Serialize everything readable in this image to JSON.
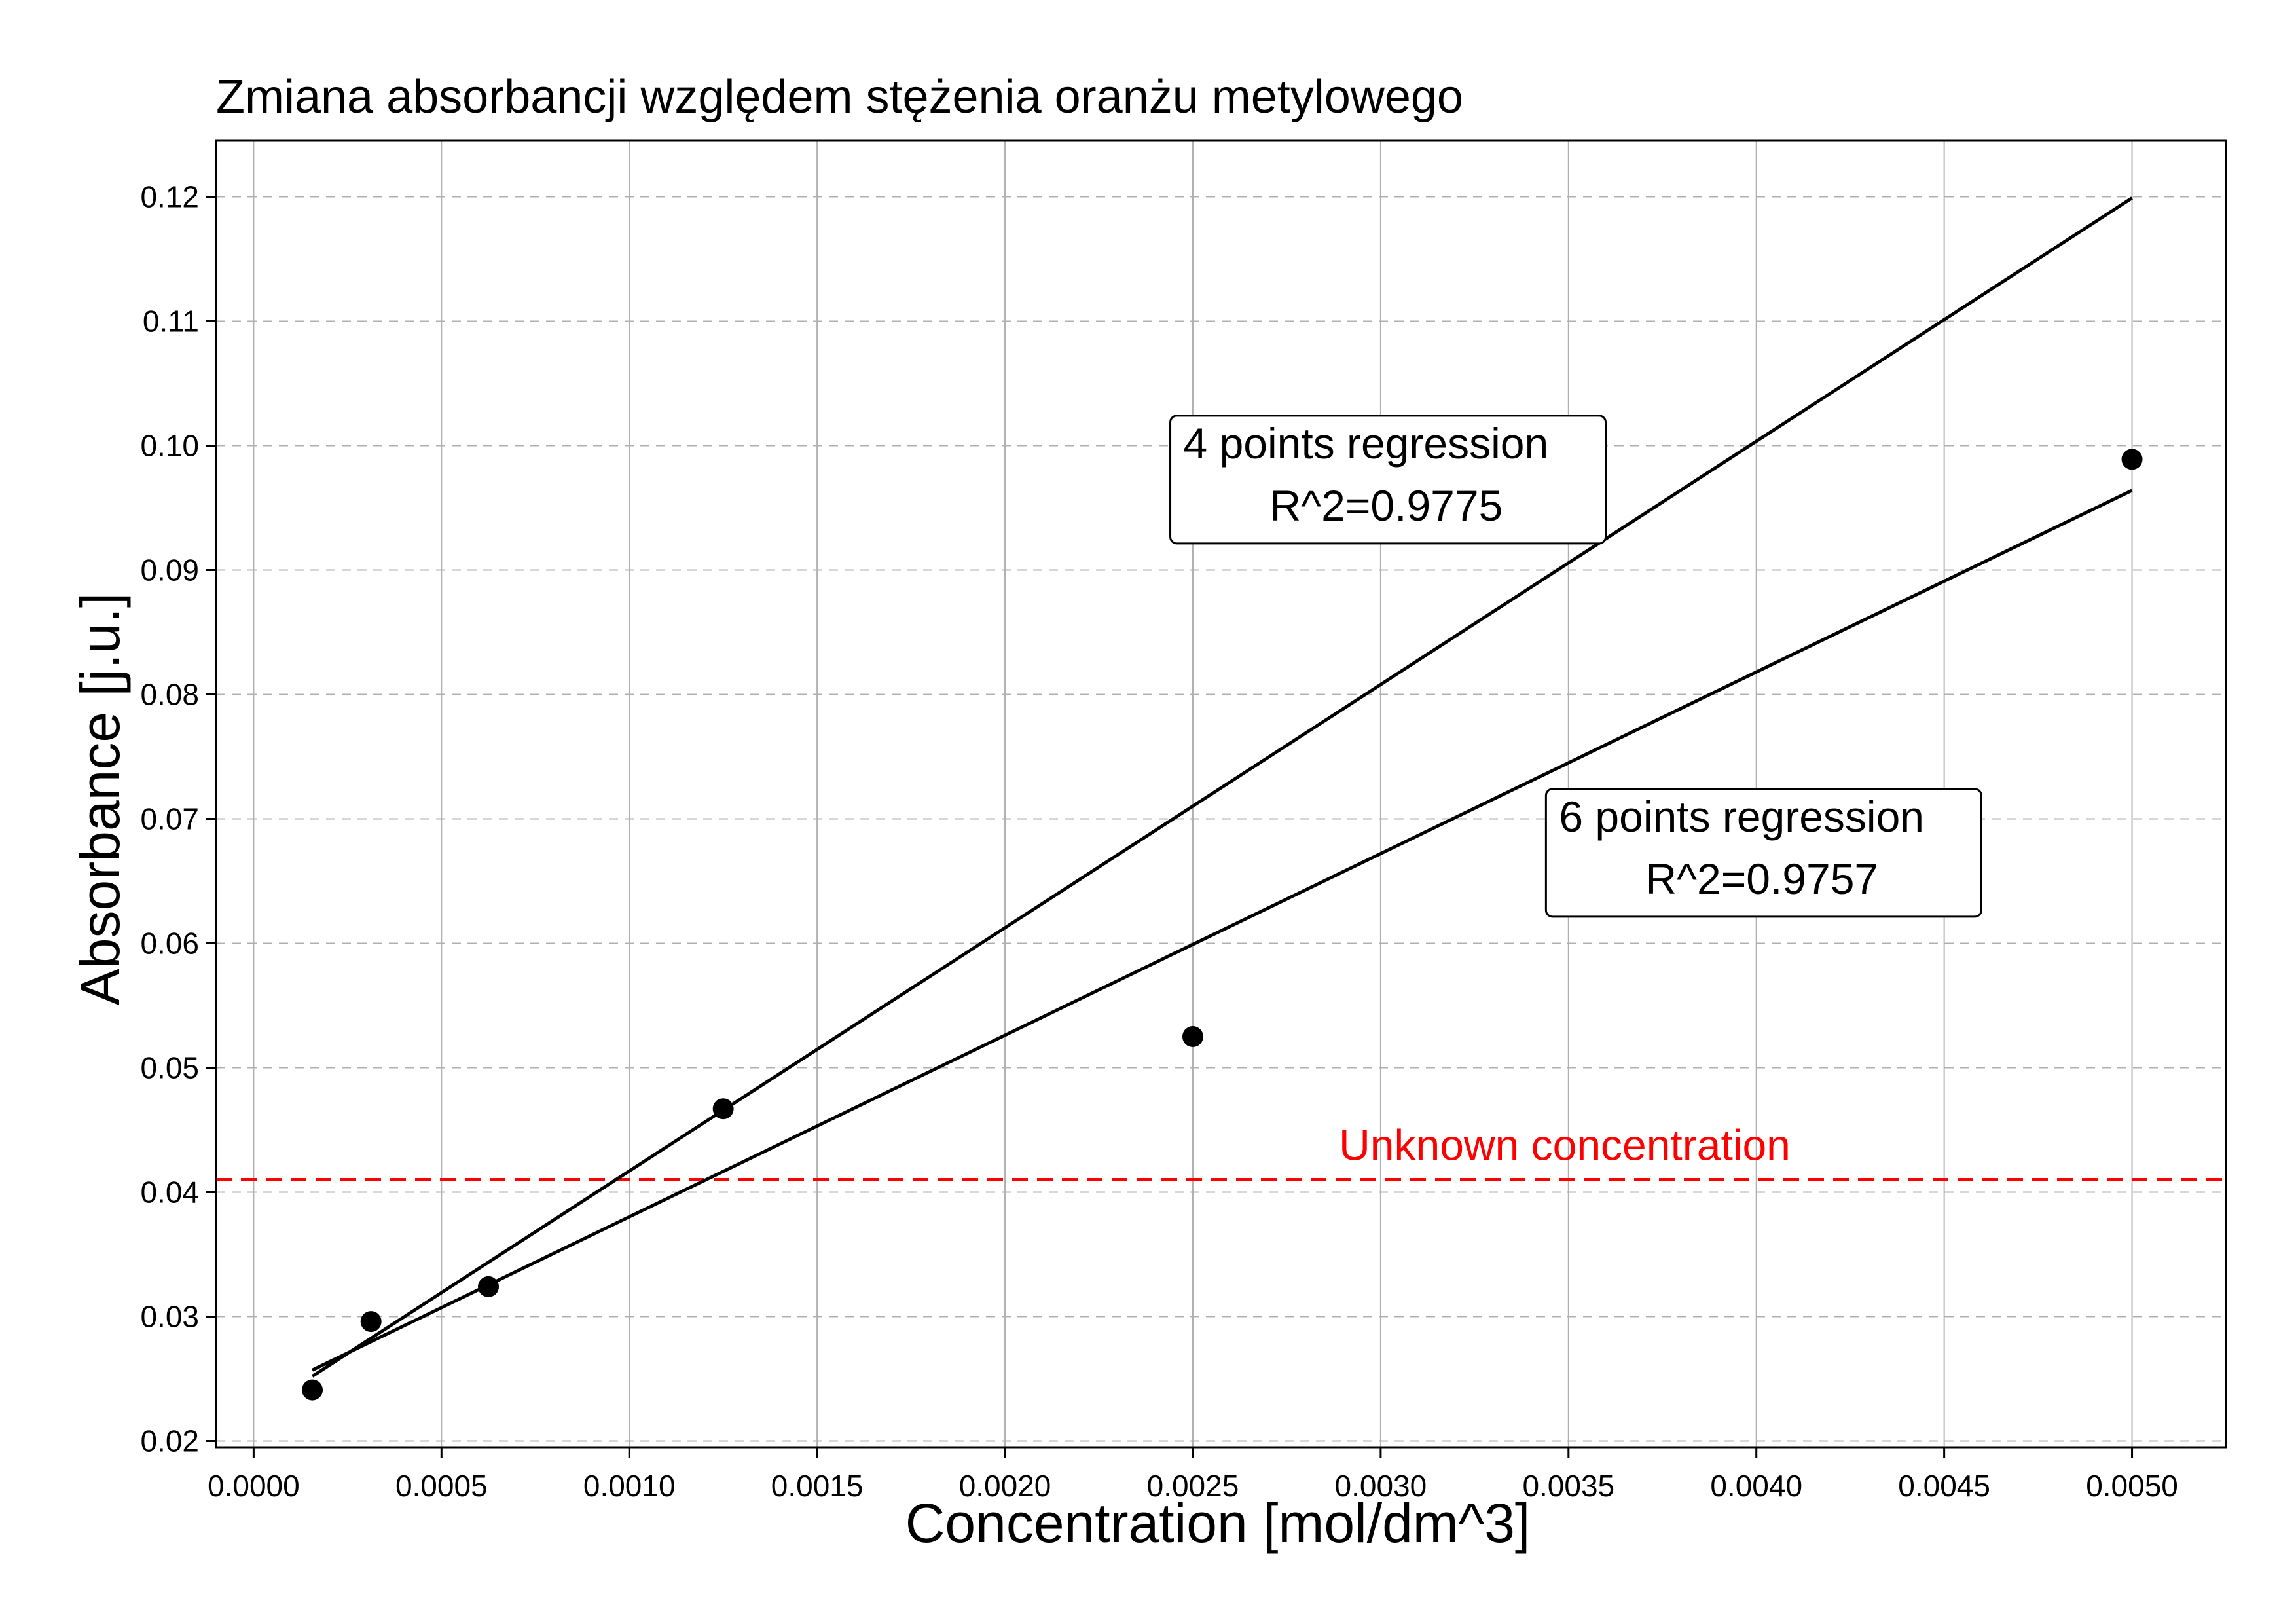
{
  "chart_data": {
    "type": "scatter",
    "title": "Zmiana absorbancji względem stężenia oranżu metylowego",
    "xlabel": "Concentration [mol/dm^3]",
    "ylabel": "Absorbance [j.u.]",
    "xlim": [
      -0.0001,
      0.00525
    ],
    "ylim": [
      0.0195,
      0.1245
    ],
    "x_ticks": [
      0.0,
      0.0005,
      0.001,
      0.0015,
      0.002,
      0.0025,
      0.003,
      0.0035,
      0.004,
      0.0045,
      0.005
    ],
    "x_tick_labels": [
      "0.0000",
      "0.0005",
      "0.0010",
      "0.0015",
      "0.0020",
      "0.0025",
      "0.0030",
      "0.0035",
      "0.0040",
      "0.0045",
      "0.0050"
    ],
    "y_ticks": [
      0.02,
      0.03,
      0.04,
      0.05,
      0.06,
      0.07,
      0.08,
      0.09,
      0.1,
      0.11,
      0.12
    ],
    "y_tick_labels": [
      "0.02",
      "0.03",
      "0.04",
      "0.05",
      "0.06",
      "0.07",
      "0.08",
      "0.09",
      "0.10",
      "0.11",
      "0.12"
    ],
    "grid": true,
    "points": [
      {
        "x": 0.00015625,
        "y": 0.0241
      },
      {
        "x": 0.0003125,
        "y": 0.0296
      },
      {
        "x": 0.000625,
        "y": 0.0324
      },
      {
        "x": 0.00125,
        "y": 0.0467
      },
      {
        "x": 0.0025,
        "y": 0.0525
      },
      {
        "x": 0.005,
        "y": 0.0989
      }
    ],
    "lines": [
      {
        "name": "4 points regression",
        "x": [
          0.00015625,
          0.005
        ],
        "y": [
          0.0252,
          0.1199
        ]
      },
      {
        "name": "6 points regression",
        "x": [
          0.00015625,
          0.005
        ],
        "y": [
          0.0257,
          0.0964
        ]
      }
    ],
    "hline": {
      "y": 0.041,
      "label": "Unknown concentration",
      "color": "#ff0000",
      "style": "dashed"
    },
    "annotations": [
      {
        "line1": "4 points regression",
        "line2": "R^2=0.9775",
        "anchor": [
          0.00244,
          0.1024
        ]
      },
      {
        "line1": "6 points regression",
        "line2": "R^2=0.9757",
        "anchor": [
          0.00344,
          0.0724
        ]
      }
    ],
    "colors": {
      "points": "#000000",
      "lines": "#000000",
      "grid": "#b0b0b0",
      "hline": "#ff0000"
    }
  }
}
